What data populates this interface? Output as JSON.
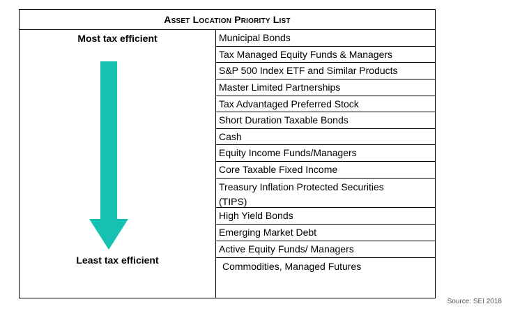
{
  "title": "Asset Location Priority List",
  "label_top": "Most tax efficient",
  "label_bottom": "Least tax efficient",
  "arrow_color": "#16c1b2",
  "assets": [
    "Municipal Bonds",
    "Tax Managed Equity Funds & Managers",
    "S&P 500 Index ETF and Similar Products",
    "Master Limited Partnerships",
    "Tax Advantaged Preferred Stock",
    "Short Duration Taxable Bonds",
    "Cash",
    "Equity Income Funds/Managers",
    "Core Taxable Fixed Income",
    "Treasury Inflation Protected Securities (TIPS)",
    "High Yield Bonds",
    "Emerging Market Debt",
    "Active Equity Funds/ Managers",
    "Commodities, Managed Futures"
  ],
  "source": "Source: SEI 2018"
}
